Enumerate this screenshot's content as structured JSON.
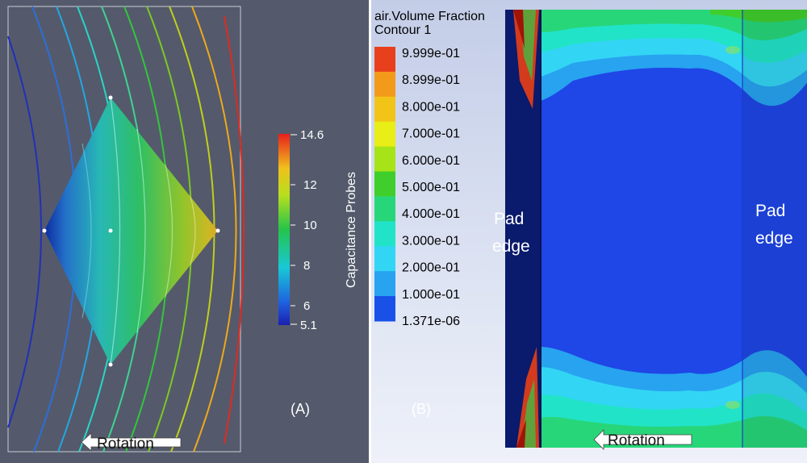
{
  "panel_a": {
    "caption": "(A)",
    "colorbar": {
      "title": "Capacitance Probes",
      "ticks": [
        "14.6",
        "12",
        "10",
        "8",
        "6",
        "5.1"
      ]
    },
    "rotation_label": "Rotation"
  },
  "panel_b": {
    "caption": "(B)",
    "legend_title_line1": "air.Volume Fraction",
    "legend_title_line2": "Contour 1",
    "legend_levels": [
      "9.999e-01",
      "8.999e-01",
      "8.000e-01",
      "7.000e-01",
      "6.000e-01",
      "5.000e-01",
      "4.000e-01",
      "3.000e-01",
      "2.000e-01",
      "1.000e-01",
      "1.371e-06"
    ],
    "legend_colors": [
      "#e8401c",
      "#f39a1a",
      "#f2c418",
      "#e8ee16",
      "#a6e317",
      "#3fce2c",
      "#28d67a",
      "#21e3c8",
      "#33d5f4",
      "#27a3f0",
      "#1850e8"
    ],
    "pad_label_left_line1": "Pad",
    "pad_label_left_line2": "edge",
    "pad_label_right_line1": "Pad",
    "pad_label_right_line2": "edge",
    "rotation_label": "Rotation"
  }
}
